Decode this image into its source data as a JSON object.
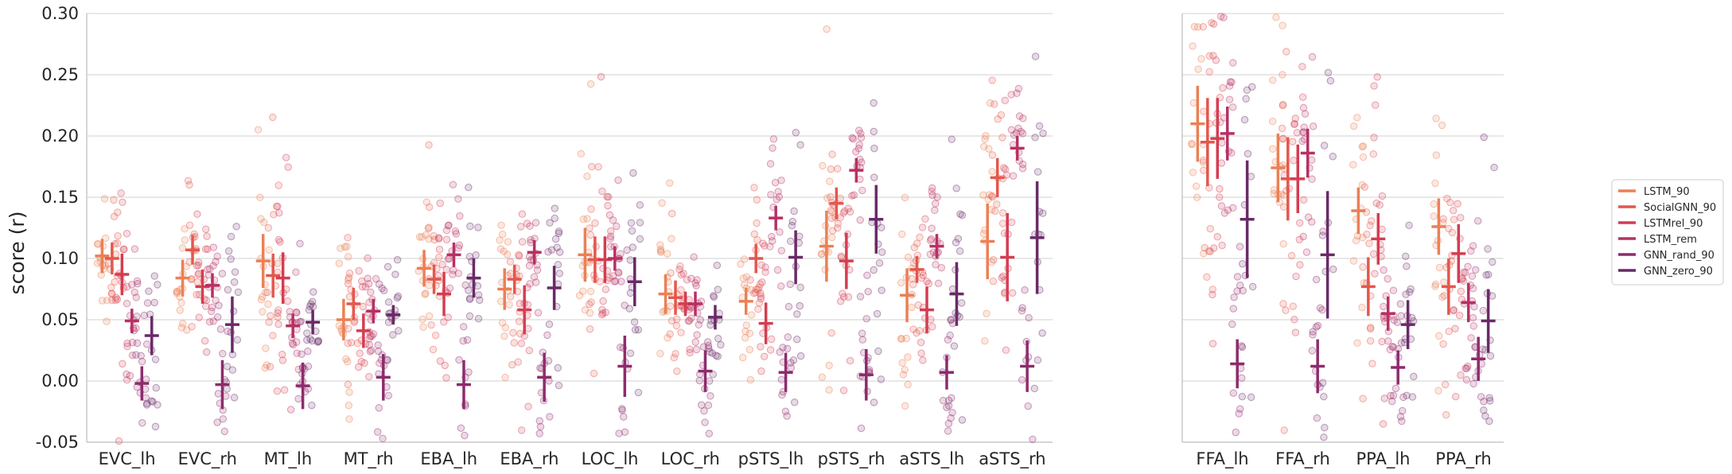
{
  "chart_data": [
    {
      "type": "scatter",
      "title": "",
      "xlabel": "",
      "ylabel": "score (r)",
      "ylim": [
        -0.05,
        0.3
      ],
      "yticks": [
        "-0.05",
        "0.00",
        "0.05",
        "0.10",
        "0.15",
        "0.20",
        "0.25",
        "0.30"
      ],
      "grid": "horizontal",
      "categories": [
        "EVC_lh",
        "EVC_rh",
        "MT_lh",
        "MT_rh",
        "EBA_lh",
        "EBA_rh",
        "LOC_lh",
        "LOC_rh",
        "pSTS_lh",
        "pSTS_rh",
        "aSTS_lh",
        "aSTS_rh"
      ],
      "series": [
        {
          "name": "LSTM_90",
          "color": "#eb8055",
          "values": [
            0.102,
            0.084,
            0.098,
            0.05,
            0.092,
            0.075,
            0.103,
            0.071,
            0.065,
            0.11,
            0.07,
            0.114
          ],
          "err": [
            0.014,
            0.015,
            0.022,
            0.017,
            0.015,
            0.017,
            0.022,
            0.016,
            0.011,
            0.029,
            0.022,
            0.031
          ]
        },
        {
          "name": "SocialGNN_90",
          "color": "#e4574c",
          "values": [
            0.1,
            0.107,
            0.086,
            0.063,
            0.083,
            0.083,
            0.099,
            0.068,
            0.1,
            0.145,
            0.091,
            0.166
          ],
          "err": [
            0.013,
            0.012,
            0.018,
            0.013,
            0.012,
            0.012,
            0.019,
            0.014,
            0.012,
            0.013,
            0.011,
            0.016
          ]
        },
        {
          "name": "LSTMrel_90",
          "color": "#d43d51",
          "values": [
            0.087,
            0.077,
            0.084,
            0.041,
            0.071,
            0.058,
            0.099,
            0.063,
            0.047,
            0.098,
            0.058,
            0.101
          ],
          "err": [
            0.017,
            0.014,
            0.021,
            0.014,
            0.018,
            0.02,
            0.019,
            0.01,
            0.017,
            0.023,
            0.019,
            0.036
          ]
        },
        {
          "name": "LSTM_rem",
          "color": "#b73064",
          "values": [
            0.049,
            0.078,
            0.045,
            0.057,
            0.103,
            0.105,
            0.1,
            0.063,
            0.133,
            0.172,
            0.11,
            0.19
          ],
          "err": [
            0.01,
            0.01,
            0.01,
            0.01,
            0.01,
            0.01,
            0.01,
            0.01,
            0.01,
            0.01,
            0.01,
            0.01
          ]
        },
        {
          "name": "GNN_rand_90",
          "color": "#8e2b6d",
          "values": [
            -0.002,
            -0.003,
            -0.004,
            0.003,
            -0.003,
            0.003,
            0.012,
            0.008,
            0.007,
            0.005,
            0.007,
            0.012
          ],
          "err": [
            0.014,
            0.02,
            0.019,
            0.019,
            0.02,
            0.02,
            0.025,
            0.017,
            0.016,
            0.021,
            0.014,
            0.021
          ]
        },
        {
          "name": "GNN_zero_90",
          "color": "#6a2a68",
          "values": [
            0.037,
            0.046,
            0.048,
            0.054,
            0.084,
            0.076,
            0.081,
            0.052,
            0.101,
            0.132,
            0.071,
            0.117
          ],
          "err": [
            0.016,
            0.023,
            0.01,
            0.008,
            0.016,
            0.018,
            0.02,
            0.01,
            0.022,
            0.028,
            0.026,
            0.046
          ]
        }
      ]
    },
    {
      "type": "scatter",
      "title": "",
      "xlabel": "",
      "ylabel": "",
      "ylim": [
        -0.05,
        0.3
      ],
      "grid": "horizontal",
      "categories": [
        "FFA_lh",
        "FFA_rh",
        "PPA_lh",
        "PPA_rh"
      ],
      "series": [
        {
          "name": "LSTM_90",
          "color": "#eb8055",
          "values": [
            0.21,
            0.174,
            0.139,
            0.126
          ],
          "err": [
            0.031,
            0.028,
            0.019,
            0.023
          ]
        },
        {
          "name": "SocialGNN_90",
          "color": "#e4574c",
          "values": [
            0.195,
            0.165,
            0.077,
            0.077
          ],
          "err": [
            0.036,
            0.034,
            0.024,
            0.023
          ]
        },
        {
          "name": "LSTMrel_90",
          "color": "#d43d51",
          "values": [
            0.198,
            0.165,
            0.116,
            0.104
          ],
          "err": [
            0.033,
            0.028,
            0.021,
            0.024
          ]
        },
        {
          "name": "LSTM_rem",
          "color": "#b73064",
          "values": [
            0.202,
            0.186,
            0.055,
            0.064
          ],
          "err": [
            0.022,
            0.02,
            0.014,
            0.016
          ]
        },
        {
          "name": "GNN_rand_90",
          "color": "#8e2b6d",
          "values": [
            0.014,
            0.012,
            0.011,
            0.018
          ],
          "err": [
            0.02,
            0.022,
            0.014,
            0.018
          ]
        },
        {
          "name": "GNN_zero_90",
          "color": "#6a2a68",
          "values": [
            0.132,
            0.103,
            0.046,
            0.049
          ],
          "err": [
            0.048,
            0.052,
            0.02,
            0.026
          ]
        }
      ]
    }
  ],
  "legend": {
    "placement": "right",
    "items": [
      "LSTM_90",
      "SocialGNN_90",
      "LSTMrel_90",
      "LSTM_rem",
      "GNN_rand_90",
      "GNN_zero_90"
    ]
  }
}
